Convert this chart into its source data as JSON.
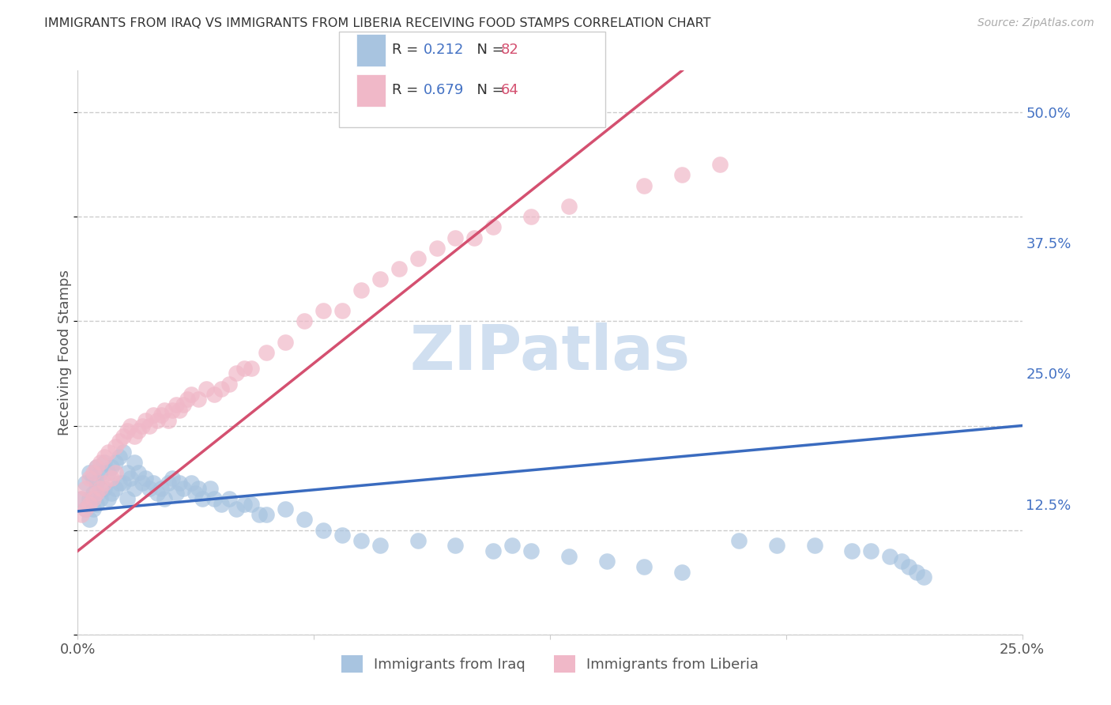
{
  "title": "IMMIGRANTS FROM IRAQ VS IMMIGRANTS FROM LIBERIA RECEIVING FOOD STAMPS CORRELATION CHART",
  "source": "Source: ZipAtlas.com",
  "ylabel": "Receiving Food Stamps",
  "xlim": [
    0.0,
    0.25
  ],
  "ylim": [
    0.0,
    0.54
  ],
  "ytick_positions": [
    0.0,
    0.125,
    0.25,
    0.375,
    0.5
  ],
  "ytick_labels": [
    "",
    "12.5%",
    "25.0%",
    "37.5%",
    "50.0%"
  ],
  "xtick_positions": [
    0.0,
    0.0625,
    0.125,
    0.1875,
    0.25
  ],
  "xtick_labels": [
    "0.0%",
    "",
    "",
    "",
    "25.0%"
  ],
  "iraq_R": 0.212,
  "iraq_N": 82,
  "liberia_R": 0.679,
  "liberia_N": 64,
  "iraq_color": "#a8c4e0",
  "liberia_color": "#f0b8c8",
  "iraq_line_color": "#3a6bbf",
  "liberia_line_color": "#d45070",
  "watermark_color": "#d0dff0",
  "background_color": "#ffffff",
  "grid_color": "#cccccc",
  "tick_color": "#4472c4",
  "iraq_x": [
    0.001,
    0.002,
    0.002,
    0.003,
    0.003,
    0.003,
    0.004,
    0.004,
    0.004,
    0.005,
    0.005,
    0.005,
    0.006,
    0.006,
    0.007,
    0.007,
    0.008,
    0.008,
    0.009,
    0.009,
    0.01,
    0.01,
    0.011,
    0.011,
    0.012,
    0.012,
    0.013,
    0.013,
    0.014,
    0.015,
    0.015,
    0.016,
    0.017,
    0.018,
    0.019,
    0.02,
    0.021,
    0.022,
    0.023,
    0.024,
    0.025,
    0.026,
    0.027,
    0.028,
    0.03,
    0.031,
    0.032,
    0.033,
    0.035,
    0.036,
    0.038,
    0.04,
    0.042,
    0.044,
    0.046,
    0.048,
    0.05,
    0.055,
    0.06,
    0.065,
    0.07,
    0.075,
    0.08,
    0.09,
    0.1,
    0.11,
    0.115,
    0.12,
    0.13,
    0.14,
    0.15,
    0.16,
    0.175,
    0.185,
    0.195,
    0.205,
    0.21,
    0.215,
    0.218,
    0.22,
    0.222,
    0.224
  ],
  "iraq_y": [
    0.13,
    0.145,
    0.12,
    0.155,
    0.13,
    0.11,
    0.15,
    0.135,
    0.12,
    0.16,
    0.145,
    0.125,
    0.155,
    0.13,
    0.165,
    0.14,
    0.155,
    0.13,
    0.16,
    0.135,
    0.165,
    0.14,
    0.17,
    0.145,
    0.175,
    0.145,
    0.155,
    0.13,
    0.15,
    0.165,
    0.14,
    0.155,
    0.145,
    0.15,
    0.14,
    0.145,
    0.135,
    0.14,
    0.13,
    0.145,
    0.15,
    0.135,
    0.145,
    0.14,
    0.145,
    0.135,
    0.14,
    0.13,
    0.14,
    0.13,
    0.125,
    0.13,
    0.12,
    0.125,
    0.125,
    0.115,
    0.115,
    0.12,
    0.11,
    0.1,
    0.095,
    0.09,
    0.085,
    0.09,
    0.085,
    0.08,
    0.085,
    0.08,
    0.075,
    0.07,
    0.065,
    0.06,
    0.09,
    0.085,
    0.085,
    0.08,
    0.08,
    0.075,
    0.07,
    0.065,
    0.06,
    0.055
  ],
  "liberia_x": [
    0.001,
    0.001,
    0.002,
    0.002,
    0.003,
    0.003,
    0.004,
    0.004,
    0.005,
    0.005,
    0.006,
    0.006,
    0.007,
    0.007,
    0.008,
    0.009,
    0.01,
    0.01,
    0.011,
    0.012,
    0.013,
    0.014,
    0.015,
    0.016,
    0.017,
    0.018,
    0.019,
    0.02,
    0.021,
    0.022,
    0.023,
    0.024,
    0.025,
    0.026,
    0.027,
    0.028,
    0.029,
    0.03,
    0.032,
    0.034,
    0.036,
    0.038,
    0.04,
    0.042,
    0.044,
    0.046,
    0.05,
    0.055,
    0.06,
    0.065,
    0.07,
    0.075,
    0.08,
    0.085,
    0.09,
    0.095,
    0.1,
    0.105,
    0.11,
    0.12,
    0.13,
    0.15,
    0.16,
    0.17
  ],
  "liberia_y": [
    0.13,
    0.115,
    0.14,
    0.12,
    0.15,
    0.125,
    0.155,
    0.13,
    0.16,
    0.135,
    0.165,
    0.14,
    0.17,
    0.145,
    0.175,
    0.15,
    0.18,
    0.155,
    0.185,
    0.19,
    0.195,
    0.2,
    0.19,
    0.195,
    0.2,
    0.205,
    0.2,
    0.21,
    0.205,
    0.21,
    0.215,
    0.205,
    0.215,
    0.22,
    0.215,
    0.22,
    0.225,
    0.23,
    0.225,
    0.235,
    0.23,
    0.235,
    0.24,
    0.25,
    0.255,
    0.255,
    0.27,
    0.28,
    0.3,
    0.31,
    0.31,
    0.33,
    0.34,
    0.35,
    0.36,
    0.37,
    0.38,
    0.38,
    0.39,
    0.4,
    0.41,
    0.43,
    0.44,
    0.45
  ],
  "iraq_line_x": [
    0.0,
    0.25
  ],
  "iraq_line_y": [
    0.118,
    0.2
  ],
  "liberia_line_x": [
    0.0,
    0.16
  ],
  "liberia_line_y": [
    0.08,
    0.54
  ]
}
